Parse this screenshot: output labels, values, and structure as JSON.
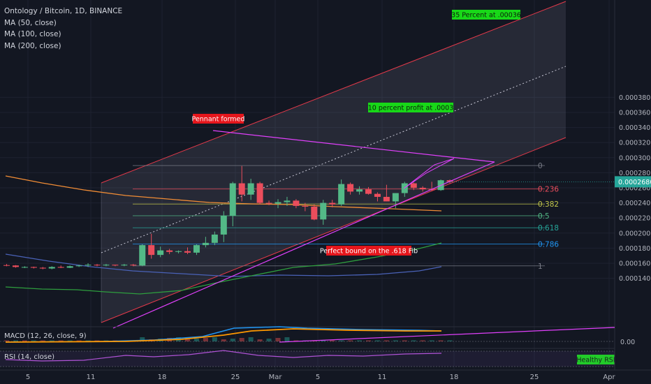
{
  "legend": {
    "symbol_line": "Ontology / Bitcoin, 1D, BINANCE",
    "ma50": "MA (50, close)",
    "ma100": "MA (100, close)",
    "ma200": "MA (200, close)"
  },
  "macd_label": "MACD (12, 26, close, 9)",
  "rsi_label": "RSI (14, close)",
  "macd_zero": "0.00",
  "colors": {
    "background": "#131722",
    "up": "#53b987",
    "down": "#eb4d5c",
    "channel": "#e5394a",
    "pennant": "#e040fb",
    "annotation_red": "#e5161c",
    "annotation_green": "#18d818"
  },
  "chart_data": {
    "type": "candlestick",
    "title": "Ontology / Bitcoin, 1D, BINANCE",
    "y_axis_ticks": [
      "0.0001400",
      "0.0001600",
      "0.0001800",
      "0.0002000",
      "0.0002200",
      "0.0002400",
      "0.0002600",
      "0.0002800",
      "0.0003000",
      "0.0003200",
      "0.0003400",
      "0.0003600",
      "0.0003800"
    ],
    "x_axis_ticks": [
      "5",
      "11",
      "18",
      "25",
      "Mar",
      "5",
      "11",
      "18",
      "25",
      "Apr"
    ],
    "ylim": [
      0.000133,
      0.000389
    ],
    "last_price": "0.0002680",
    "candles": [
      {
        "o": 0.0001575,
        "h": 0.000159,
        "l": 0.000156,
        "c": 0.000157
      },
      {
        "o": 0.000157,
        "h": 0.0001575,
        "l": 0.000154,
        "c": 0.000155
      },
      {
        "o": 0.000155,
        "h": 0.000156,
        "l": 0.0001535,
        "c": 0.000155
      },
      {
        "o": 0.000155,
        "h": 0.0001555,
        "l": 0.000153,
        "c": 0.000154
      },
      {
        "o": 0.000154,
        "h": 0.000155,
        "l": 0.000152,
        "c": 0.000153
      },
      {
        "o": 0.000153,
        "h": 0.000156,
        "l": 0.000152,
        "c": 0.000155
      },
      {
        "o": 0.000155,
        "h": 0.000157,
        "l": 0.0001535,
        "c": 0.000154
      },
      {
        "o": 0.000154,
        "h": 0.000157,
        "l": 0.0001535,
        "c": 0.000156
      },
      {
        "o": 0.000156,
        "h": 0.000158,
        "l": 0.000155,
        "c": 0.000157
      },
      {
        "o": 0.000157,
        "h": 0.00016,
        "l": 0.000155,
        "c": 0.000158
      },
      {
        "o": 0.000158,
        "h": 0.000159,
        "l": 0.000156,
        "c": 0.000157
      },
      {
        "o": 0.000157,
        "h": 0.000159,
        "l": 0.000156,
        "c": 0.000158
      },
      {
        "o": 0.000158,
        "h": 0.000158,
        "l": 0.000156,
        "c": 0.000157
      },
      {
        "o": 0.000157,
        "h": 0.000159,
        "l": 0.000156,
        "c": 0.000158
      },
      {
        "o": 0.000158,
        "h": 0.000159,
        "l": 0.000156,
        "c": 0.000157
      },
      {
        "o": 0.000157,
        "h": 0.000185,
        "l": 0.000156,
        "c": 0.000184
      },
      {
        "o": 0.000184,
        "h": 0.000199,
        "l": 0.000166,
        "c": 0.000171
      },
      {
        "o": 0.000171,
        "h": 0.000182,
        "l": 0.000168,
        "c": 0.000177
      },
      {
        "o": 0.000177,
        "h": 0.000179,
        "l": 0.000172,
        "c": 0.000175
      },
      {
        "o": 0.000175,
        "h": 0.000177,
        "l": 0.000173,
        "c": 0.000176
      },
      {
        "o": 0.000176,
        "h": 0.000181,
        "l": 0.000172,
        "c": 0.000174
      },
      {
        "o": 0.000174,
        "h": 0.000185,
        "l": 0.000171,
        "c": 0.000184
      },
      {
        "o": 0.000184,
        "h": 0.000195,
        "l": 0.000181,
        "c": 0.000187
      },
      {
        "o": 0.000187,
        "h": 0.000202,
        "l": 0.000184,
        "c": 0.000198
      },
      {
        "o": 0.000198,
        "h": 0.000229,
        "l": 0.000188,
        "c": 0.000223
      },
      {
        "o": 0.000223,
        "h": 0.000268,
        "l": 0.000209,
        "c": 0.000266
      },
      {
        "o": 0.000266,
        "h": 0.000289,
        "l": 0.000242,
        "c": 0.000251
      },
      {
        "o": 0.000251,
        "h": 0.000272,
        "l": 0.000244,
        "c": 0.000266
      },
      {
        "o": 0.000266,
        "h": 0.000268,
        "l": 0.000238,
        "c": 0.00024
      },
      {
        "o": 0.00024,
        "h": 0.000243,
        "l": 0.000237,
        "c": 0.000239
      },
      {
        "o": 0.000239,
        "h": 0.000245,
        "l": 0.000233,
        "c": 0.000241
      },
      {
        "o": 0.000241,
        "h": 0.000248,
        "l": 0.000236,
        "c": 0.000243
      },
      {
        "o": 0.000243,
        "h": 0.000245,
        "l": 0.000233,
        "c": 0.000236
      },
      {
        "o": 0.000236,
        "h": 0.00024,
        "l": 0.000229,
        "c": 0.000235
      },
      {
        "o": 0.000235,
        "h": 0.000238,
        "l": 0.000217,
        "c": 0.000218
      },
      {
        "o": 0.000218,
        "h": 0.000244,
        "l": 0.000211,
        "c": 0.00024
      },
      {
        "o": 0.00024,
        "h": 0.000244,
        "l": 0.000234,
        "c": 0.000238
      },
      {
        "o": 0.000238,
        "h": 0.000271,
        "l": 0.000236,
        "c": 0.000265
      },
      {
        "o": 0.000265,
        "h": 0.000267,
        "l": 0.000251,
        "c": 0.000255
      },
      {
        "o": 0.000255,
        "h": 0.000262,
        "l": 0.000251,
        "c": 0.000258
      },
      {
        "o": 0.000258,
        "h": 0.000261,
        "l": 0.000251,
        "c": 0.000252
      },
      {
        "o": 0.000252,
        "h": 0.000254,
        "l": 0.000242,
        "c": 0.000248
      },
      {
        "o": 0.000248,
        "h": 0.000264,
        "l": 0.000242,
        "c": 0.000242
      },
      {
        "o": 0.000242,
        "h": 0.000252,
        "l": 0.000233,
        "c": 0.000253
      },
      {
        "o": 0.000253,
        "h": 0.000268,
        "l": 0.000248,
        "c": 0.000266
      },
      {
        "o": 0.000266,
        "h": 0.000267,
        "l": 0.000257,
        "c": 0.00026
      },
      {
        "o": 0.00026,
        "h": 0.000262,
        "l": 0.000255,
        "c": 0.000258
      },
      {
        "o": 0.000258,
        "h": 0.000268,
        "l": 0.000256,
        "c": 0.000257
      },
      {
        "o": 0.000257,
        "h": 0.000271,
        "l": 0.000256,
        "c": 0.00027
      },
      {
        "o": 0.00027,
        "h": 0.000271,
        "l": 0.000266,
        "c": 0.000268
      }
    ],
    "fib_levels": [
      {
        "label": "0",
        "value": 0.0002895
      },
      {
        "label": "0.236",
        "value": 0.0002585
      },
      {
        "label": "0.382",
        "value": 0.0002385
      },
      {
        "label": "0.5",
        "value": 0.000223
      },
      {
        "label": "0.618",
        "value": 0.000207
      },
      {
        "label": "0.786",
        "value": 0.0001855
      },
      {
        "label": "1",
        "value": 0.0001565
      }
    ],
    "annotations": [
      {
        "text": "Pennant formed",
        "style": "red"
      },
      {
        "text": "10 percent profit at .0003",
        "style": "green"
      },
      {
        "text": "35 Percent at .00036",
        "style": "green"
      },
      {
        "text": "Perfect bound on the .618 Fib",
        "style": "red"
      },
      {
        "text": "Healthy RSI",
        "style": "green"
      }
    ]
  }
}
